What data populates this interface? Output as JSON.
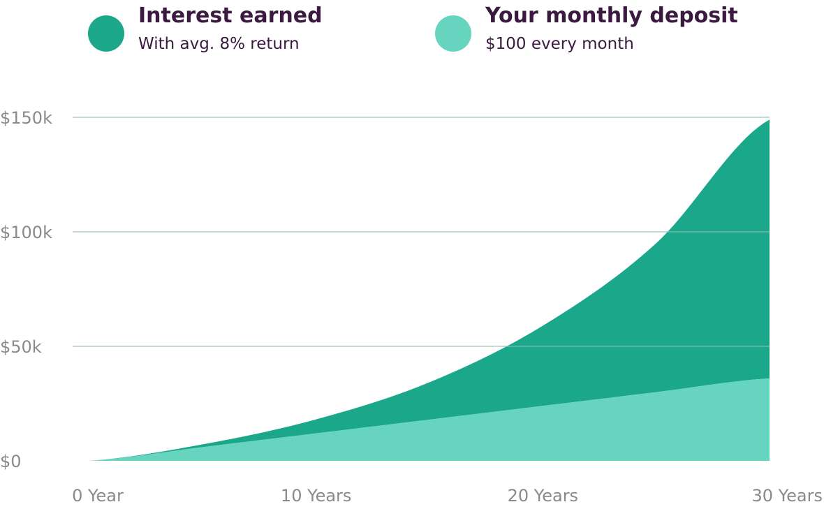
{
  "legend": [
    {
      "title": "Interest earned",
      "subtitle": "With avg. 8% return",
      "color": "#1ba78a"
    },
    {
      "title": "Your monthly deposit",
      "subtitle": "$100 every month",
      "color": "#66d4bf"
    }
  ],
  "chart_data": {
    "type": "area",
    "stacked": true,
    "title": "",
    "xlabel": "",
    "ylabel": "",
    "x": [
      0,
      5,
      10,
      15,
      20,
      25,
      30
    ],
    "x_ticks": [
      {
        "value": 0,
        "label": "0 Year"
      },
      {
        "value": 10,
        "label": "10 Years"
      },
      {
        "value": 20,
        "label": "20 Years"
      },
      {
        "value": 30,
        "label": "30 Years"
      }
    ],
    "y_ticks": [
      {
        "value": 0,
        "label": "$0"
      },
      {
        "value": 50000,
        "label": "$50k"
      },
      {
        "value": 100000,
        "label": "$100k"
      },
      {
        "value": 150000,
        "label": "$150k"
      }
    ],
    "ylim": [
      0,
      150000
    ],
    "xlim": [
      0,
      30
    ],
    "grid": true,
    "series": [
      {
        "name": "Your monthly deposit",
        "color": "#66d4bf",
        "values": [
          0,
          6000,
          12000,
          18000,
          24000,
          30000,
          36000
        ]
      },
      {
        "name": "Interest earned",
        "color": "#1ba78a",
        "values": [
          0,
          1200,
          6100,
          16300,
          35000,
          65000,
          113000
        ]
      }
    ],
    "gridline_color": "#8fbfb0"
  }
}
